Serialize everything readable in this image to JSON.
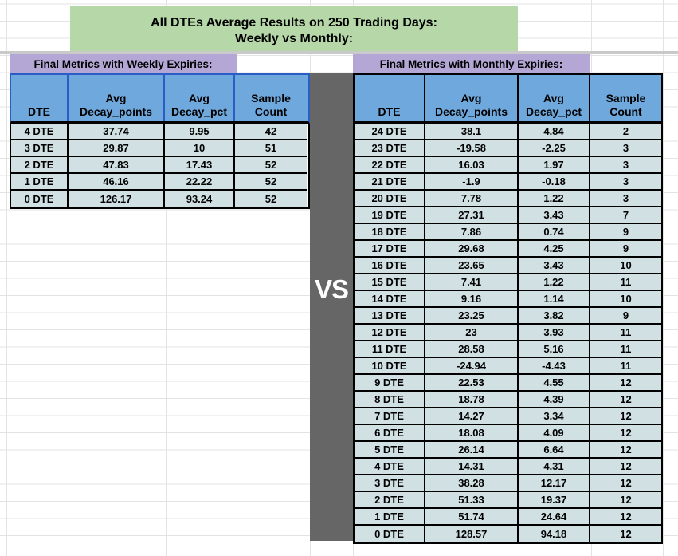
{
  "title": {
    "line1": "All DTEs Average Results on 250 Trading Days:",
    "line2": "Weekly vs Monthly:"
  },
  "vs": {
    "label": "VS"
  },
  "weekly": {
    "banner": "Final Metrics with Weekly Expiries:",
    "headers": [
      "DTE",
      "Avg Decay_points",
      "Avg Decay_pct",
      "Sample Count"
    ],
    "rows": [
      [
        "4 DTE",
        "37.74",
        "9.95",
        "42"
      ],
      [
        "3 DTE",
        "29.87",
        "10",
        "51"
      ],
      [
        "2 DTE",
        "47.83",
        "17.43",
        "52"
      ],
      [
        "1 DTE",
        "46.16",
        "22.22",
        "52"
      ],
      [
        "0 DTE",
        "126.17",
        "93.24",
        "52"
      ]
    ]
  },
  "monthly": {
    "banner": "Final Metrics with Monthly Expiries:",
    "headers": [
      "DTE",
      "Avg Decay_points",
      "Avg Decay_pct",
      "Sample Count"
    ],
    "rows": [
      [
        "24 DTE",
        "38.1",
        "4.84",
        "2"
      ],
      [
        "23 DTE",
        "-19.58",
        "-2.25",
        "3"
      ],
      [
        "22 DTE",
        "16.03",
        "1.97",
        "3"
      ],
      [
        "21 DTE",
        "-1.9",
        "-0.18",
        "3"
      ],
      [
        "20 DTE",
        "7.78",
        "1.22",
        "3"
      ],
      [
        "19 DTE",
        "27.31",
        "3.43",
        "7"
      ],
      [
        "18 DTE",
        "7.86",
        "0.74",
        "9"
      ],
      [
        "17 DTE",
        "29.68",
        "4.25",
        "9"
      ],
      [
        "16 DTE",
        "23.65",
        "3.43",
        "10"
      ],
      [
        "15 DTE",
        "7.41",
        "1.22",
        "11"
      ],
      [
        "14 DTE",
        "9.16",
        "1.14",
        "10"
      ],
      [
        "13 DTE",
        "23.25",
        "3.82",
        "9"
      ],
      [
        "12 DTE",
        "23",
        "3.93",
        "11"
      ],
      [
        "11 DTE",
        "28.58",
        "5.16",
        "11"
      ],
      [
        "10 DTE",
        "-24.94",
        "-4.43",
        "11"
      ],
      [
        "9 DTE",
        "22.53",
        "4.55",
        "12"
      ],
      [
        "8 DTE",
        "18.78",
        "4.39",
        "12"
      ],
      [
        "7 DTE",
        "14.27",
        "3.34",
        "12"
      ],
      [
        "6 DTE",
        "18.08",
        "4.09",
        "12"
      ],
      [
        "5 DTE",
        "26.14",
        "6.64",
        "12"
      ],
      [
        "4 DTE",
        "14.31",
        "4.31",
        "12"
      ],
      [
        "3 DTE",
        "38.28",
        "12.17",
        "12"
      ],
      [
        "2 DTE",
        "51.33",
        "19.37",
        "12"
      ],
      [
        "1 DTE",
        "51.74",
        "24.64",
        "12"
      ],
      [
        "0 DTE",
        "128.57",
        "94.18",
        "12"
      ]
    ]
  },
  "colors": {
    "title_bg": "#b6d7a8",
    "banner_bg": "#b4a7d6",
    "header_bg": "#6fa8dc",
    "cell_bg": "#d0e0e3",
    "vs_bg": "#666666",
    "weekly_header_border": "#2b5dc7",
    "table_border": "#000000",
    "gridline": "#e3e3e3"
  }
}
